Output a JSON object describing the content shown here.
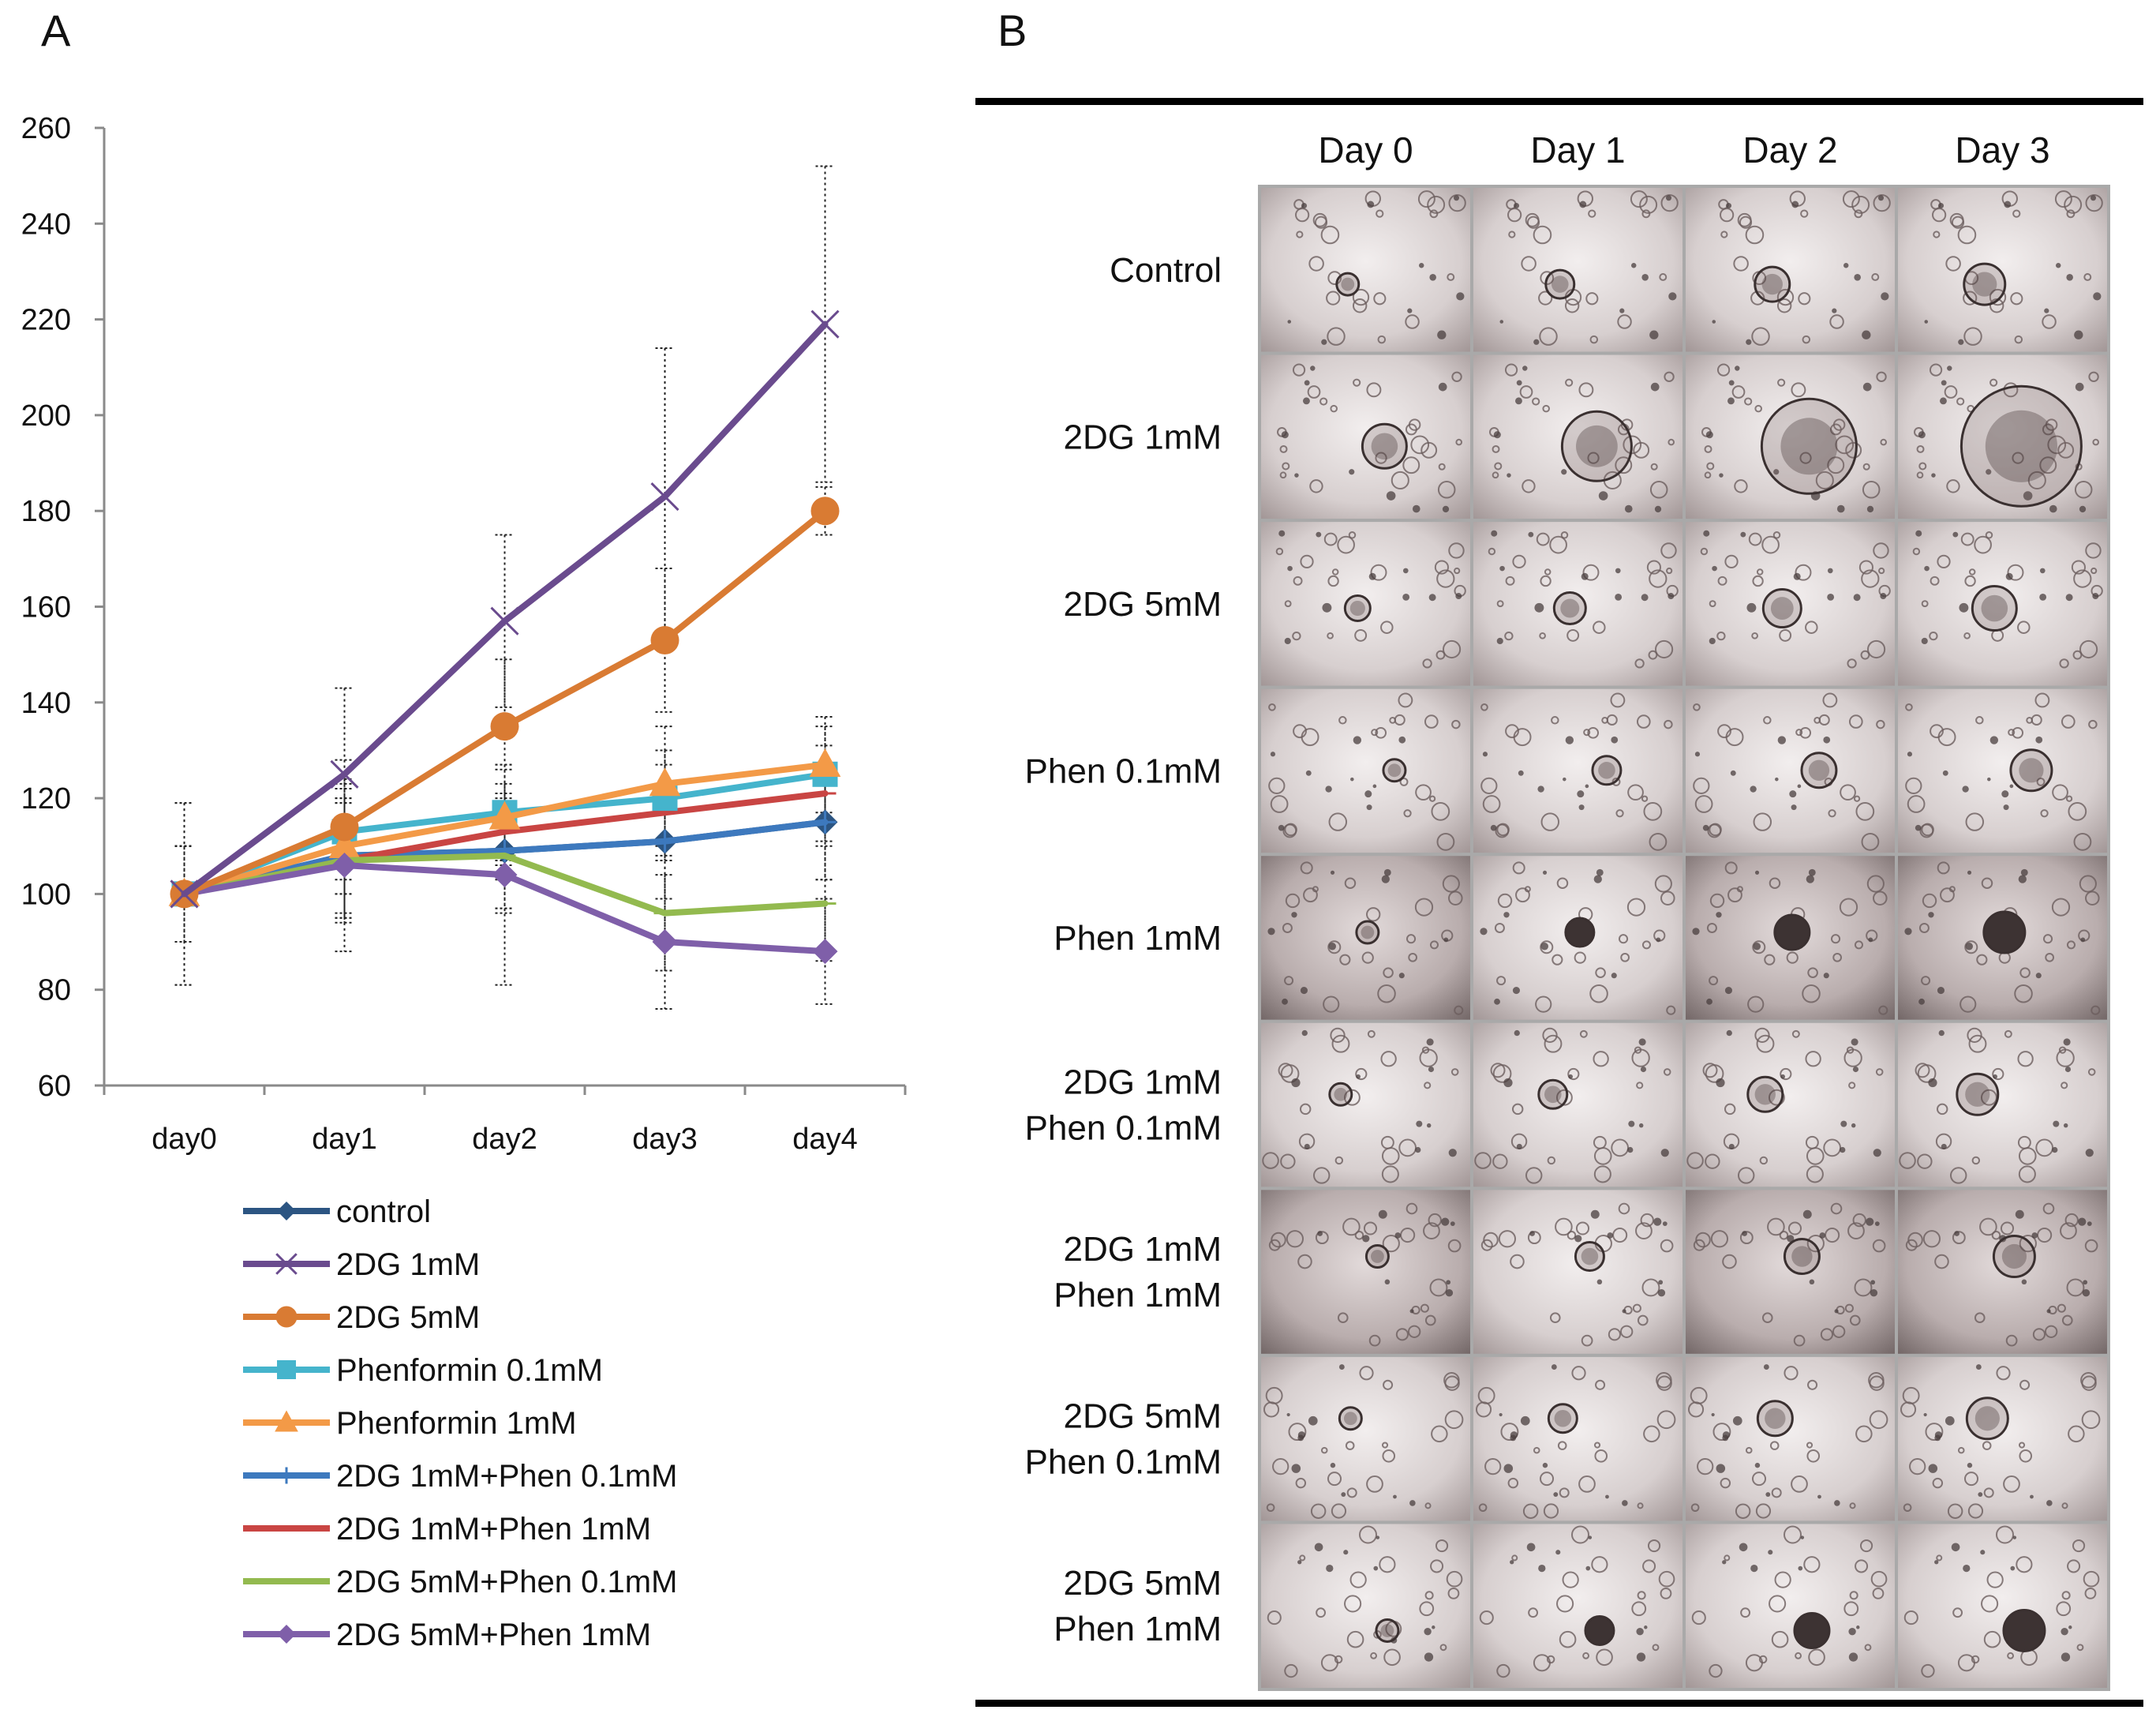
{
  "panel_a_label": "A",
  "panel_b_label": "B",
  "chart_data": {
    "type": "line",
    "title": "",
    "xlabel": "",
    "ylabel": "",
    "categories": [
      "day0",
      "day1",
      "day2",
      "day3",
      "day4"
    ],
    "ylim": [
      60,
      260
    ],
    "yticks": [
      60,
      80,
      100,
      120,
      140,
      160,
      180,
      200,
      220,
      240,
      260
    ],
    "grid": false,
    "legend_position": "bottom",
    "series": [
      {
        "name": "control",
        "color": "#2c5582",
        "marker": "diamond",
        "values": [
          100,
          108,
          109,
          111,
          115
        ],
        "err": [
          10,
          14,
          12,
          12,
          12
        ]
      },
      {
        "name": "2DG 1mM",
        "color": "#6a4b8e",
        "marker": "x",
        "values": [
          100,
          125,
          157,
          183,
          219
        ],
        "err": [
          19,
          18,
          18,
          31,
          33
        ]
      },
      {
        "name": "2DG 5mM",
        "color": "#d97b33",
        "marker": "circle",
        "values": [
          100,
          114,
          135,
          153,
          180
        ],
        "err": [
          10,
          14,
          14,
          15,
          5
        ]
      },
      {
        "name": "Phenformin 0.1mM",
        "color": "#45b4cc",
        "marker": "square",
        "values": [
          100,
          113,
          117,
          120,
          125
        ],
        "err": [
          10,
          10,
          10,
          10,
          10
        ]
      },
      {
        "name": "Phenformin 1mM",
        "color": "#f39a47",
        "marker": "triangle",
        "values": [
          100,
          110,
          116,
          123,
          127
        ],
        "err": [
          10,
          10,
          10,
          12,
          10
        ]
      },
      {
        "name": "2DG 1mM+Phen 0.1mM",
        "color": "#3d79be",
        "marker": "plus",
        "values": [
          100,
          108,
          109,
          111,
          115
        ],
        "err": [
          10,
          12,
          12,
          12,
          12
        ]
      },
      {
        "name": "2DG 1mM+Phen 1mM",
        "color": "#c94543",
        "marker": "dash",
        "values": [
          100,
          107,
          113,
          117,
          121
        ],
        "err": [
          10,
          12,
          10,
          10,
          10
        ]
      },
      {
        "name": "2DG 5mM+Phen 0.1mM",
        "color": "#93ba4f",
        "marker": "dash",
        "values": [
          100,
          107,
          108,
          96,
          98
        ],
        "err": [
          10,
          12,
          12,
          12,
          12
        ]
      },
      {
        "name": "2DG 5mM+Phen 1mM",
        "color": "#7f5fa9",
        "marker": "diamond",
        "values": [
          100,
          106,
          104,
          90,
          88
        ],
        "err": [
          19,
          18,
          23,
          14,
          11
        ]
      }
    ]
  },
  "image_grid": {
    "columns": [
      "Day 0",
      "Day 1",
      "Day 2",
      "Day 3"
    ],
    "rows": [
      {
        "line1": "Control",
        "line2": ""
      },
      {
        "line1": "2DG      1mM",
        "line2": ""
      },
      {
        "line1": "2DG      5mM",
        "line2": ""
      },
      {
        "line1": "Phen  0.1mM",
        "line2": ""
      },
      {
        "line1": "Phen      1mM",
        "line2": ""
      },
      {
        "line1": "2DG      1mM",
        "line2": "Phen  0.1mM"
      },
      {
        "line1": "2DG      1mM",
        "line2": "Phen      1mM"
      },
      {
        "line1": "2DG      5mM",
        "line2": "Phen  0.1mM"
      },
      {
        "line1": "2DG      5mM",
        "line2": "Phen      1mM"
      }
    ]
  }
}
